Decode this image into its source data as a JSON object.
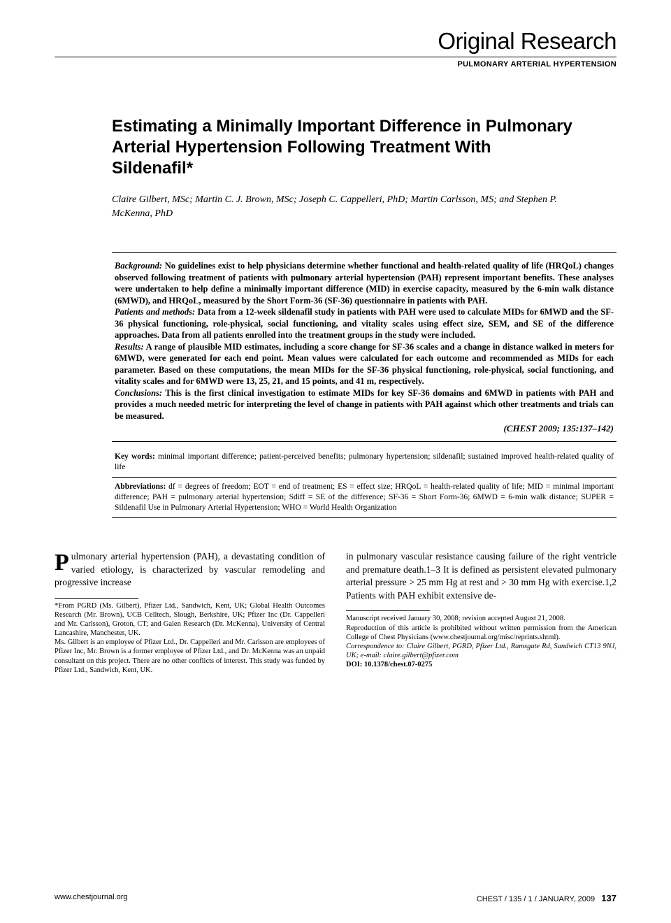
{
  "header": {
    "title": "Original Research",
    "subtitle": "PULMONARY ARTERIAL HYPERTENSION"
  },
  "article": {
    "title": "Estimating a Minimally Important Difference in Pulmonary Arterial Hypertension Following Treatment With Sildenafil*",
    "authors": "Claire Gilbert, MSc; Martin C. J. Brown, MSc; Joseph C. Cappelleri, PhD; Martin Carlsson, MS; and Stephen P. McKenna, PhD"
  },
  "abstract": {
    "background_label": "Background:",
    "background_text": " No guidelines exist to help physicians determine whether functional and health-related quality of life (HRQoL) changes observed following treatment of patients with pulmonary arterial hypertension (PAH) represent important benefits. These analyses were undertaken to help define a minimally important difference (MID) in exercise capacity, measured by the 6-min walk distance (6MWD), and HRQoL, measured by the Short Form-36 (SF-36) questionnaire in patients with PAH.",
    "methods_label": "Patients and methods:",
    "methods_text": " Data from a 12-week sildenafil study in patients with PAH were used to calculate MIDs for 6MWD and the SF-36 physical functioning, role-physical, social functioning, and vitality scales using effect size, SEM, and SE of the difference approaches. Data from all patients enrolled into the treatment groups in the study were included.",
    "results_label": "Results:",
    "results_text": " A range of plausible MID estimates, including a score change for SF-36 scales and a change in distance walked in meters for 6MWD, were generated for each end point. Mean values were calculated for each outcome and recommended as MIDs for each parameter. Based on these computations, the mean MIDs for the SF-36 physical functioning, role-physical, social functioning, and vitality scales and for 6MWD were 13, 25, 21, and 15 points, and 41 m, respectively.",
    "conclusions_label": "Conclusions:",
    "conclusions_text": " This is the first clinical investigation to estimate MIDs for key SF-36 domains and 6MWD in patients with PAH and provides a much needed metric for interpreting the level of change in patients with PAH against which other treatments and trials can be measured.",
    "citation": "(CHEST 2009; 135:137–142)"
  },
  "keywords": {
    "label": "Key words:",
    "text": " minimal important difference; patient-perceived benefits; pulmonary hypertension; sildenafil; sustained improved health-related quality of life"
  },
  "abbreviations": {
    "label": "Abbreviations:",
    "text": " df = degrees of freedom; EOT = end of treatment; ES = effect size; HRQoL = health-related quality of life; MID = minimal important difference; PAH = pulmonary arterial hypertension; Sdiff = SE of the difference; SF-36 = Short Form-36; 6MWD = 6-min walk distance; SUPER = Sildenafil Use in Pulmonary Arterial Hypertension; WHO = World Health Organization"
  },
  "body": {
    "col1_dropcap": "P",
    "col1_text": "ulmonary arterial hypertension (PAH), a devastating condition of varied etiology, is characterized by vascular remodeling and progressive increase",
    "col2_text": "in pulmonary vascular resistance causing failure of the right ventricle and premature death.1–3 It is defined as persistent elevated pulmonary arterial pressure > 25 mm Hg at rest and > 30 mm Hg with exercise.1,2 Patients with PAH exhibit extensive de-"
  },
  "footnotes": {
    "left1": "*From PGRD (Ms. Gilbert), Pfizer Ltd., Sandwich, Kent, UK; Global Health Outcomes Research (Mr. Brown), UCB Celltech, Slough, Berkshire, UK; Pfizer Inc (Dr. Cappelleri and Mr. Carlsson), Groton, CT; and Galen Research (Dr. McKenna), University of Central Lancashire, Manchester, UK.",
    "left2": "Ms. Gilbert is an employee of Pfizer Ltd., Dr. Cappelleri and Mr. Carlsson are employees of Pfizer Inc, Mr. Brown is a former employee of Pfizer Ltd., and Dr. McKenna was an unpaid consultant on this project. There are no other conflicts of interest. This study was funded by Pfizer Ltd., Sandwich, Kent, UK.",
    "right1": "Manuscript received January 30, 2008; revision accepted August 21, 2008.",
    "right2": "Reproduction of this article is prohibited without written permission from the American College of Chest Physicians (www.chestjournal.org/misc/reprints.shtml).",
    "right3_label": "Correspondence to:",
    "right3_text": " Claire Gilbert, PGRD, Pfizer Ltd., Ramsgate Rd, Sandwich CT13 9NJ, UK; e-mail: claire.gilbert@pfizer.com",
    "right4_label": "DOI: 10.1378/chest.07-0275"
  },
  "footer": {
    "left": "www.chestjournal.org",
    "right_text": "CHEST / 135 / 1 / JANUARY, 2009",
    "page": "137"
  }
}
